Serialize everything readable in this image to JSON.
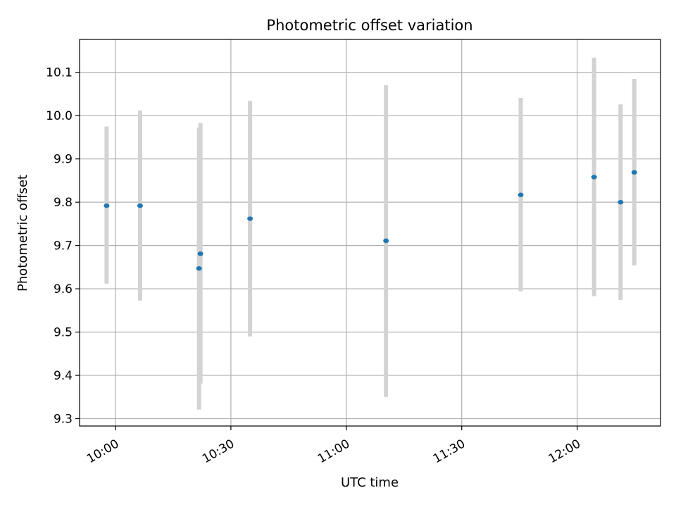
{
  "chart_data": {
    "type": "scatter",
    "title": "Photometric offset variation",
    "xlabel": "UTC time",
    "ylabel": "Photometric offset",
    "xlim": [
      "09:50:40",
      "12:21:40"
    ],
    "ylim": [
      9.283,
      10.176
    ],
    "x_ticks": [
      "10:00",
      "10:30",
      "11:00",
      "11:30",
      "12:00"
    ],
    "y_ticks": [
      "9.3",
      "9.4",
      "9.5",
      "9.6",
      "9.7",
      "9.8",
      "9.9",
      "10.0",
      "10.1"
    ],
    "grid": true,
    "colors": {
      "point": "#1f77b4",
      "errorbar": "#d3d3d3",
      "grid": "#b0b0b0",
      "axes": "#000000"
    },
    "points": [
      {
        "time": "09:57:42",
        "value": 9.792,
        "low": 9.612,
        "high": 9.975
      },
      {
        "time": "10:06:24",
        "value": 9.792,
        "low": 9.573,
        "high": 10.012
      },
      {
        "time": "10:21:43",
        "value": 9.647,
        "low": 9.321,
        "high": 9.972
      },
      {
        "time": "10:22:05",
        "value": 9.681,
        "low": 9.381,
        "high": 9.983
      },
      {
        "time": "10:34:59",
        "value": 9.762,
        "low": 9.49,
        "high": 10.034
      },
      {
        "time": "11:10:19",
        "value": 9.711,
        "low": 9.35,
        "high": 10.07
      },
      {
        "time": "11:45:20",
        "value": 9.817,
        "low": 9.594,
        "high": 10.041
      },
      {
        "time": "12:04:24",
        "value": 9.858,
        "low": 9.583,
        "high": 10.134
      },
      {
        "time": "12:11:17",
        "value": 9.8,
        "low": 9.574,
        "high": 10.026
      },
      {
        "time": "12:14:51",
        "value": 9.869,
        "low": 9.654,
        "high": 10.085
      }
    ]
  }
}
